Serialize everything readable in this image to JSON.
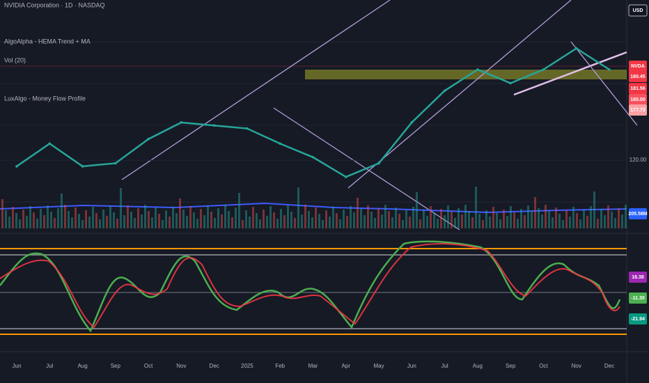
{
  "chart_data": {
    "type": "line",
    "title": "NVIDIA Corporation · 1D · NASDAQ",
    "indicators": [
      "AlgoAlpha - HEMA Trend + MA",
      "Vol (20)",
      "LuxAlgo - Money Flow Profile"
    ],
    "categories": [
      "Jun",
      "Jul",
      "Aug",
      "Sep",
      "Oct",
      "Nov",
      "Dec",
      "2025",
      "Feb",
      "Mar",
      "Apr",
      "May",
      "Jun",
      "Jul",
      "Aug",
      "Sep",
      "Oct",
      "Nov",
      "Dec"
    ],
    "series": [
      {
        "name": "NVDA",
        "color": "#26a69a",
        "values": [
          116,
          131,
          116,
          118,
          134,
          145,
          143,
          141,
          131,
          122,
          109,
          118,
          145,
          166,
          180,
          171,
          180,
          194,
          180
        ]
      }
    ],
    "ylim": [
      74,
      226
    ],
    "yticks": [
      {
        "value": 120,
        "label": "120.00"
      }
    ],
    "axis_labels": [
      {
        "text": "USD",
        "color": "#131722"
      },
      {
        "text": "NVDA",
        "color": "#f23645"
      },
      {
        "text": "180.45",
        "color": "#f23645"
      },
      {
        "text": "181.56",
        "color": "#f23645"
      },
      {
        "text": "180.00",
        "color": "#f7525f"
      },
      {
        "text": "177.73",
        "color": "#faa1a4"
      },
      {
        "text": "205.58M",
        "color": "#2962ff"
      },
      {
        "text": "16.38",
        "color": "#9c27b0"
      },
      {
        "text": "-11.30",
        "color": "#4caf50"
      },
      {
        "text": "-21.94",
        "color": "#089981"
      }
    ]
  }
}
